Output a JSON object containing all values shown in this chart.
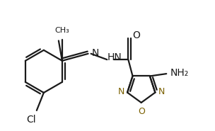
{
  "background_color": "#ffffff",
  "line_color": "#1a1a1a",
  "heteroatom_color": "#7a6000",
  "bond_lw": 1.6,
  "figsize": [
    3.04,
    1.85
  ],
  "dpi": 100,
  "xlim": [
    0.0,
    8.5
  ],
  "ylim": [
    0.0,
    5.5
  ]
}
